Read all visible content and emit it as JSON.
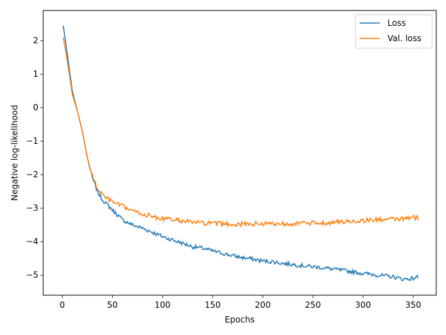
{
  "chart_data": {
    "type": "line",
    "title": "",
    "xlabel": "Epochs",
    "ylabel": "Negative log-likelihood",
    "xlim": [
      -19,
      373
    ],
    "ylim": [
      -5.6,
      2.9
    ],
    "xticks": [
      0,
      50,
      100,
      150,
      200,
      250,
      300,
      350
    ],
    "yticks": [
      -5,
      -4,
      -3,
      -2,
      -1,
      0,
      1,
      2
    ],
    "grid": false,
    "legend_position": "top-right",
    "series": [
      {
        "name": "Loss",
        "color": "#1f77b4",
        "points": [
          [
            1,
            2.45
          ],
          [
            5,
            1.6
          ],
          [
            10,
            0.5
          ],
          [
            15,
            -0.1
          ],
          [
            20,
            -0.7
          ],
          [
            25,
            -1.5
          ],
          [
            30,
            -2.1
          ],
          [
            35,
            -2.5
          ],
          [
            40,
            -2.75
          ],
          [
            45,
            -2.9
          ],
          [
            50,
            -3.05
          ],
          [
            55,
            -3.2
          ],
          [
            60,
            -3.35
          ],
          [
            70,
            -3.5
          ],
          [
            80,
            -3.6
          ],
          [
            90,
            -3.72
          ],
          [
            100,
            -3.85
          ],
          [
            110,
            -3.95
          ],
          [
            120,
            -4.05
          ],
          [
            130,
            -4.15
          ],
          [
            140,
            -4.2
          ],
          [
            150,
            -4.28
          ],
          [
            160,
            -4.35
          ],
          [
            170,
            -4.42
          ],
          [
            180,
            -4.48
          ],
          [
            190,
            -4.52
          ],
          [
            200,
            -4.58
          ],
          [
            210,
            -4.6
          ],
          [
            220,
            -4.65
          ],
          [
            230,
            -4.68
          ],
          [
            240,
            -4.72
          ],
          [
            250,
            -4.75
          ],
          [
            260,
            -4.78
          ],
          [
            270,
            -4.82
          ],
          [
            280,
            -4.86
          ],
          [
            290,
            -4.9
          ],
          [
            300,
            -4.95
          ],
          [
            310,
            -4.98
          ],
          [
            320,
            -5.02
          ],
          [
            330,
            -5.05
          ],
          [
            340,
            -5.12
          ],
          [
            350,
            -5.1
          ],
          [
            355,
            -5.05
          ]
        ]
      },
      {
        "name": "Val. loss",
        "color": "#ff7f0e",
        "points": [
          [
            1,
            2.1
          ],
          [
            5,
            1.4
          ],
          [
            10,
            0.4
          ],
          [
            15,
            -0.1
          ],
          [
            20,
            -0.7
          ],
          [
            25,
            -1.5
          ],
          [
            30,
            -2.05
          ],
          [
            35,
            -2.4
          ],
          [
            40,
            -2.6
          ],
          [
            45,
            -2.72
          ],
          [
            50,
            -2.82
          ],
          [
            55,
            -2.88
          ],
          [
            60,
            -2.95
          ],
          [
            70,
            -3.08
          ],
          [
            80,
            -3.18
          ],
          [
            90,
            -3.25
          ],
          [
            100,
            -3.32
          ],
          [
            110,
            -3.35
          ],
          [
            120,
            -3.38
          ],
          [
            130,
            -3.42
          ],
          [
            140,
            -3.45
          ],
          [
            150,
            -3.46
          ],
          [
            160,
            -3.47
          ],
          [
            170,
            -3.48
          ],
          [
            180,
            -3.48
          ],
          [
            190,
            -3.47
          ],
          [
            200,
            -3.46
          ],
          [
            210,
            -3.46
          ],
          [
            220,
            -3.46
          ],
          [
            230,
            -3.46
          ],
          [
            240,
            -3.45
          ],
          [
            250,
            -3.45
          ],
          [
            260,
            -3.44
          ],
          [
            270,
            -3.43
          ],
          [
            280,
            -3.41
          ],
          [
            290,
            -3.39
          ],
          [
            300,
            -3.37
          ],
          [
            310,
            -3.35
          ],
          [
            320,
            -3.34
          ],
          [
            330,
            -3.33
          ],
          [
            340,
            -3.32
          ],
          [
            350,
            -3.28
          ],
          [
            355,
            -3.3
          ]
        ]
      }
    ]
  }
}
